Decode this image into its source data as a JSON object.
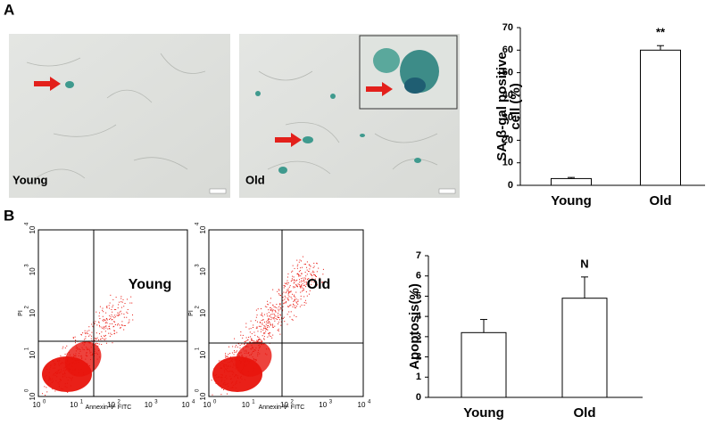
{
  "panel_labels": [
    "A",
    "B"
  ],
  "images": [
    {
      "label": "Young"
    },
    {
      "label": "Old"
    }
  ],
  "flow_plots": [
    {
      "label": "Young",
      "x_label": "Annexin-V- FITC",
      "y_label": "PI"
    },
    {
      "label": "Old",
      "x_label": "Annexin-V- FITC",
      "y_label": "PI"
    }
  ],
  "flow_tick_base": "10",
  "flow_tick_exponents": [
    0,
    1,
    2,
    3,
    4
  ],
  "chart_data": [
    {
      "type": "bar",
      "ylabel": [
        "SA-β-gal positive",
        "cell (%)"
      ],
      "categories": [
        "Young",
        "Old"
      ],
      "values": [
        3,
        60
      ],
      "errors": [
        0.5,
        2
      ],
      "color": "#ffffff",
      "ylim": [
        0,
        70
      ],
      "yticks": [
        0,
        10,
        20,
        30,
        40,
        50,
        60,
        70
      ],
      "annotations": [
        {
          "text": "**",
          "category": "Old"
        }
      ]
    },
    {
      "type": "bar",
      "ylabel": [
        "Apoptosis(%)"
      ],
      "categories": [
        "Young",
        "Old"
      ],
      "values": [
        3.2,
        4.9
      ],
      "errors": [
        0.65,
        1.05
      ],
      "color": "#ffffff",
      "ylim": [
        0,
        7
      ],
      "yticks": [
        0,
        1,
        2,
        3,
        4,
        5,
        6,
        7
      ],
      "annotations": [
        {
          "text": "N",
          "category": "Old"
        }
      ]
    }
  ]
}
